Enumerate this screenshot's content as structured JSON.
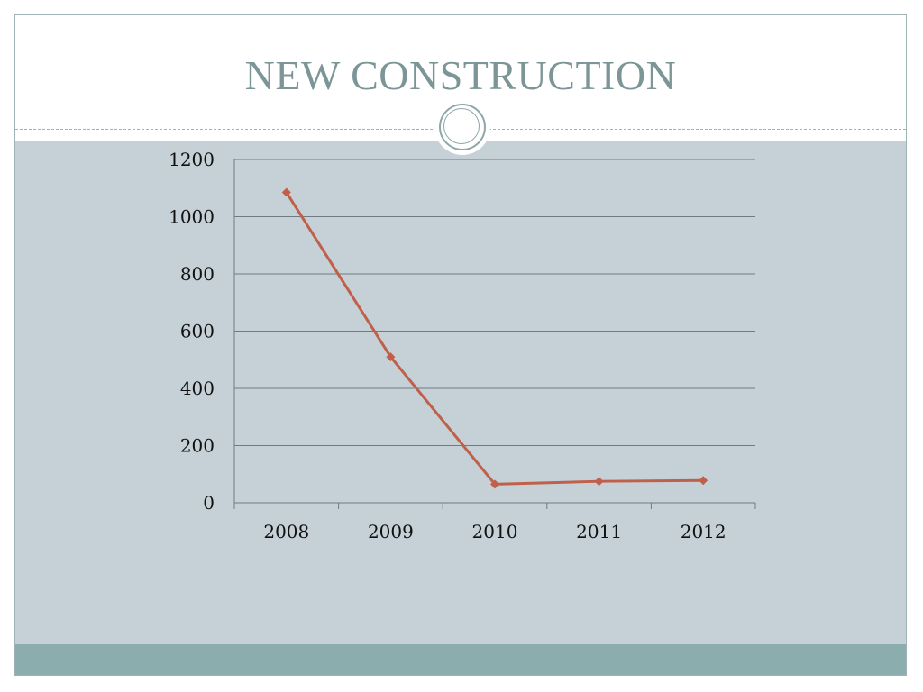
{
  "slide": {
    "title": "NEW CONSTRUCTION"
  },
  "colors": {
    "title": "#7c9597",
    "content_band": "#c5d1d7",
    "bottom_band": "#8badae",
    "series_line": "#c0604a"
  },
  "chart_data": {
    "type": "line",
    "categories": [
      "2008",
      "2009",
      "2010",
      "2011",
      "2012"
    ],
    "series": [
      {
        "values": [
          1085,
          510,
          65,
          75,
          78
        ]
      }
    ],
    "title": "",
    "xlabel": "",
    "ylabel": "",
    "ylim": [
      0,
      1200
    ],
    "yticks": [
      "0",
      "200",
      "400",
      "600",
      "800",
      "1000",
      "1200"
    ],
    "grid": true,
    "legend": "none",
    "marker": "diamond"
  }
}
